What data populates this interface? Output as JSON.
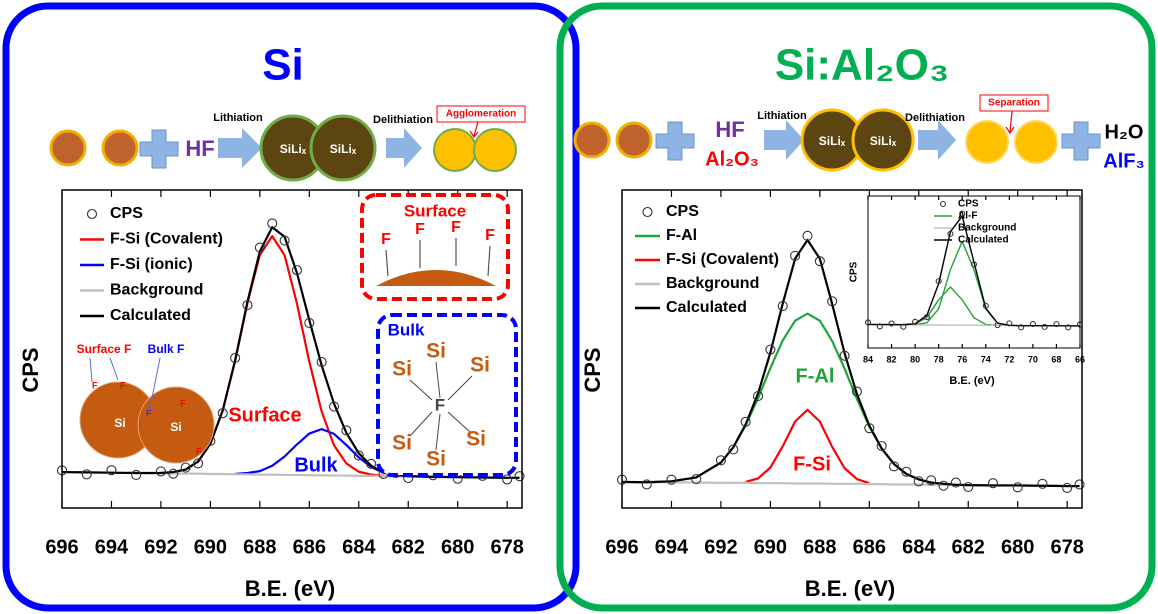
{
  "panels": [
    {
      "title": "Si",
      "scheme": {
        "reagent": "HF",
        "step1": "Lithiation",
        "intermediate": [
          "SiLiₓ",
          "SiLiₓ"
        ],
        "step2": "Delithiation",
        "callout": "Agglomeration"
      },
      "surface_box": {
        "title": "Surface",
        "atoms": [
          "F",
          "F",
          "F",
          "F"
        ]
      },
      "bulk_box": {
        "title": "Bulk",
        "center": "F",
        "atoms": [
          "Si",
          "Si",
          "Si",
          "Si",
          "Si",
          "Si"
        ]
      },
      "particle": {
        "surface_label": "Surface F",
        "bulk_label": "Bulk F",
        "cores": [
          "Si",
          "Si"
        ],
        "atoms": [
          "F",
          "F",
          "F",
          "F",
          "F"
        ]
      }
    },
    {
      "title": "Si:Al₂O₃",
      "scheme": {
        "reagents": [
          "HF",
          "Al₂O₃"
        ],
        "step1": "Lithiation",
        "intermediate": [
          "SiLiₓ",
          "SiLiₓ"
        ],
        "step2": "Delithiation",
        "callout": "Separation",
        "products": [
          "H₂O",
          "AlF₃"
        ]
      }
    }
  ],
  "chart_data": [
    {
      "type": "line",
      "xlabel": "B.E. (eV)",
      "ylabel": "CPS",
      "legend": "upper left",
      "x": [
        696,
        695,
        694,
        693,
        692,
        691.5,
        691,
        690.5,
        690,
        689.5,
        689,
        688.5,
        688,
        687.5,
        687,
        686.5,
        686,
        685.5,
        685,
        684.5,
        684,
        683.5,
        683,
        682.5,
        682,
        681,
        680,
        679,
        678,
        677.5
      ],
      "xlim": [
        696,
        677.4
      ],
      "xticks": [
        696,
        694,
        692,
        690,
        688,
        686,
        684,
        682,
        680,
        678
      ],
      "ylim": [
        0,
        100
      ],
      "series": [
        {
          "name": "CPS",
          "mode": "markers",
          "color": "#333333",
          "values": [
            11.8,
            10.6,
            11.9,
            10.4,
            11.5,
            10.8,
            12.7,
            14.0,
            21.1,
            29.8,
            47.2,
            63.8,
            81.9,
            89.5,
            84.1,
            74.8,
            58.2,
            45.9,
            31.9,
            24.4,
            16.5,
            13.9,
            10.7,
            11.0,
            9.4,
            10.3,
            9.2,
            10.1,
            9.0,
            10.0
          ]
        },
        {
          "name": "F-Si (Covalent)",
          "mode": "lines",
          "color": "#ff0000",
          "values": [
            null,
            null,
            null,
            null,
            11.0,
            11.3,
            12.1,
            14.6,
            20.2,
            30.7,
            46.3,
            64.5,
            79.6,
            85.5,
            79.5,
            64.3,
            46.0,
            30.3,
            19.7,
            14.0,
            11.4,
            10.5,
            10.1,
            10.0,
            9.9,
            null,
            null,
            null,
            null,
            null
          ]
        },
        {
          "name": "F-Si (ionic)",
          "mode": "lines",
          "color": "#0000ff",
          "values": [
            null,
            null,
            null,
            null,
            null,
            null,
            null,
            null,
            null,
            null,
            10.7,
            11.0,
            11.6,
            13.3,
            16.2,
            20.0,
            23.4,
            24.8,
            23.3,
            19.8,
            15.9,
            12.9,
            11.1,
            10.4,
            10.0,
            9.8,
            null,
            null,
            null,
            null
          ]
        },
        {
          "name": "Background",
          "mode": "lines",
          "color": "#c0c0c0",
          "values": [
            11.3,
            11.2,
            11.1,
            11.0,
            10.9,
            10.9,
            10.8,
            10.8,
            10.7,
            10.7,
            10.6,
            10.6,
            10.5,
            10.5,
            10.4,
            10.4,
            10.3,
            10.3,
            10.2,
            10.2,
            10.1,
            10.1,
            10.0,
            10.0,
            9.9,
            9.8,
            9.7,
            9.6,
            9.5,
            9.5
          ]
        },
        {
          "name": "Calculated",
          "mode": "lines",
          "color": "#000000",
          "values": [
            11.3,
            11.2,
            11.1,
            11.0,
            11.0,
            11.3,
            12.1,
            14.6,
            20.2,
            30.7,
            46.4,
            64.9,
            80.7,
            88.3,
            85.3,
            73.9,
            59.1,
            44.8,
            32.8,
            23.6,
            17.2,
            13.3,
            11.2,
            10.4,
            10.0,
            9.8,
            9.7,
            9.6,
            9.5,
            9.5
          ]
        }
      ],
      "annotations": [
        {
          "text": "Surface",
          "color": "#ff0000"
        },
        {
          "text": "Bulk",
          "color": "#0000ff"
        }
      ]
    },
    {
      "type": "line",
      "xlabel": "B.E. (eV)",
      "ylabel": "CPS",
      "legend": "upper left",
      "x": [
        696,
        695,
        694,
        693,
        692,
        691.5,
        691,
        690.5,
        690,
        689.5,
        689,
        688.5,
        688,
        687.5,
        687,
        686.5,
        686,
        685.5,
        685,
        684.5,
        684,
        683.5,
        683,
        682.5,
        682,
        681,
        680,
        679,
        678,
        677.5
      ],
      "xlim": [
        696,
        677.4
      ],
      "xticks": [
        696,
        694,
        692,
        690,
        688,
        686,
        684,
        682,
        680,
        678
      ],
      "ylim": [
        0,
        100
      ],
      "series": [
        {
          "name": "CPS",
          "mode": "markers",
          "color": "#333333",
          "values": [
            8.9,
            7.4,
            8.9,
            9.1,
            15.0,
            18.4,
            27.1,
            35.2,
            49.8,
            63.5,
            79.3,
            85.6,
            77.6,
            65.0,
            47.9,
            36.6,
            25.1,
            19.5,
            13.1,
            11.4,
            8.4,
            8.7,
            7.0,
            8.0,
            6.6,
            7.8,
            6.5,
            7.6,
            6.3,
            7.4
          ]
        },
        {
          "name": "F-Al",
          "mode": "lines",
          "color": "#22a33a",
          "values": [
            8.2,
            8.1,
            8.4,
            9.6,
            14.3,
            19.1,
            26.0,
            34.5,
            44.0,
            52.7,
            58.9,
            61.1,
            58.9,
            52.5,
            43.8,
            34.3,
            25.6,
            18.7,
            13.8,
            10.7,
            9.0,
            8.0,
            7.6,
            7.3,
            7.2,
            7.1,
            7.1,
            7.0,
            6.9,
            6.9
          ]
        },
        {
          "name": "F-Si (Covalent)",
          "mode": "lines",
          "color": "#ff0000",
          "values": [
            null,
            null,
            null,
            null,
            null,
            null,
            8.2,
            9.3,
            12.7,
            19.4,
            27.2,
            30.9,
            27.2,
            19.2,
            12.5,
            9.1,
            7.8,
            null,
            null,
            null,
            null,
            null,
            null,
            null,
            null,
            null,
            null,
            null,
            null,
            null
          ]
        },
        {
          "name": "Background",
          "mode": "lines",
          "color": "#c0c0c0",
          "values": [
            8.2,
            8.1,
            8.1,
            8.0,
            7.9,
            7.9,
            7.9,
            7.8,
            7.8,
            7.8,
            7.7,
            7.7,
            7.7,
            7.6,
            7.6,
            7.6,
            7.5,
            7.5,
            7.4,
            7.4,
            7.4,
            7.3,
            7.3,
            7.3,
            7.2,
            7.1,
            7.1,
            7.0,
            6.9,
            6.9
          ]
        },
        {
          "name": "Calculated",
          "mode": "lines",
          "color": "#000000",
          "values": [
            8.2,
            8.1,
            8.4,
            9.6,
            14.3,
            19.1,
            26.3,
            36.0,
            48.9,
            64.3,
            78.4,
            84.3,
            78.4,
            64.1,
            48.7,
            35.8,
            25.9,
            18.7,
            13.8,
            10.7,
            9.0,
            8.0,
            7.6,
            7.3,
            7.2,
            7.1,
            7.1,
            7.0,
            6.9,
            6.9
          ]
        }
      ],
      "annotations": [
        {
          "text": "F-Al",
          "color": "#22a33a"
        },
        {
          "text": "F-Si",
          "color": "#ff0000"
        }
      ]
    },
    {
      "type": "line",
      "xlabel": "B.E. (eV)",
      "ylabel": "CPS",
      "legend": "upper right",
      "x": [
        84,
        83,
        82,
        81,
        80,
        79,
        78,
        77,
        76,
        75,
        74,
        73,
        72,
        71,
        70,
        69,
        68,
        67,
        66
      ],
      "xlim": [
        84,
        66
      ],
      "xticks": [
        84,
        82,
        80,
        78,
        76,
        74,
        72,
        70,
        68,
        66
      ],
      "ylim": [
        0,
        100
      ],
      "series": [
        {
          "name": "CPS",
          "mode": "markers",
          "color": "#333333",
          "values": [
            16.8,
            14.2,
            16.1,
            14.0,
            17.2,
            20.3,
            44.0,
            75.1,
            88.4,
            55.0,
            27.8,
            15.1,
            16.2,
            13.6,
            15.8,
            13.9,
            15.7,
            13.5,
            15.4
          ]
        },
        {
          "name": "Al-F",
          "mode": "lines",
          "color": "#22a33a",
          "values": [
            null,
            null,
            null,
            null,
            15.3,
            16.6,
            25.8,
            51.6,
            70.1,
            51.5,
            25.6,
            16.3,
            14.9,
            null,
            null,
            null,
            null,
            null,
            null
          ]
        },
        {
          "mode": "lines",
          "color": "#22a33a",
          "values": [
            null,
            null,
            null,
            15.3,
            15.8,
            20.1,
            31.7,
            40.1,
            31.7,
            19.9,
            15.5,
            14.9,
            null,
            null,
            null,
            null,
            null,
            null,
            null
          ]
        },
        {
          "name": "Background",
          "mode": "lines",
          "color": "#c0c0c0",
          "values": [
            15.5,
            15.4,
            15.4,
            15.3,
            15.2,
            15.2,
            15.1,
            15.1,
            15.1,
            15.0,
            14.9,
            14.9,
            14.8,
            14.7,
            14.7,
            14.7,
            14.6,
            14.6,
            14.5
          ]
        },
        {
          "name": "Calculated",
          "mode": "lines",
          "color": "#000000",
          "values": [
            15.5,
            15.4,
            15.4,
            15.3,
            15.9,
            21.5,
            42.4,
            76.6,
            86.7,
            56.4,
            26.2,
            16.3,
            14.9,
            14.7,
            14.7,
            14.7,
            14.6,
            14.6,
            14.5
          ]
        }
      ]
    }
  ]
}
